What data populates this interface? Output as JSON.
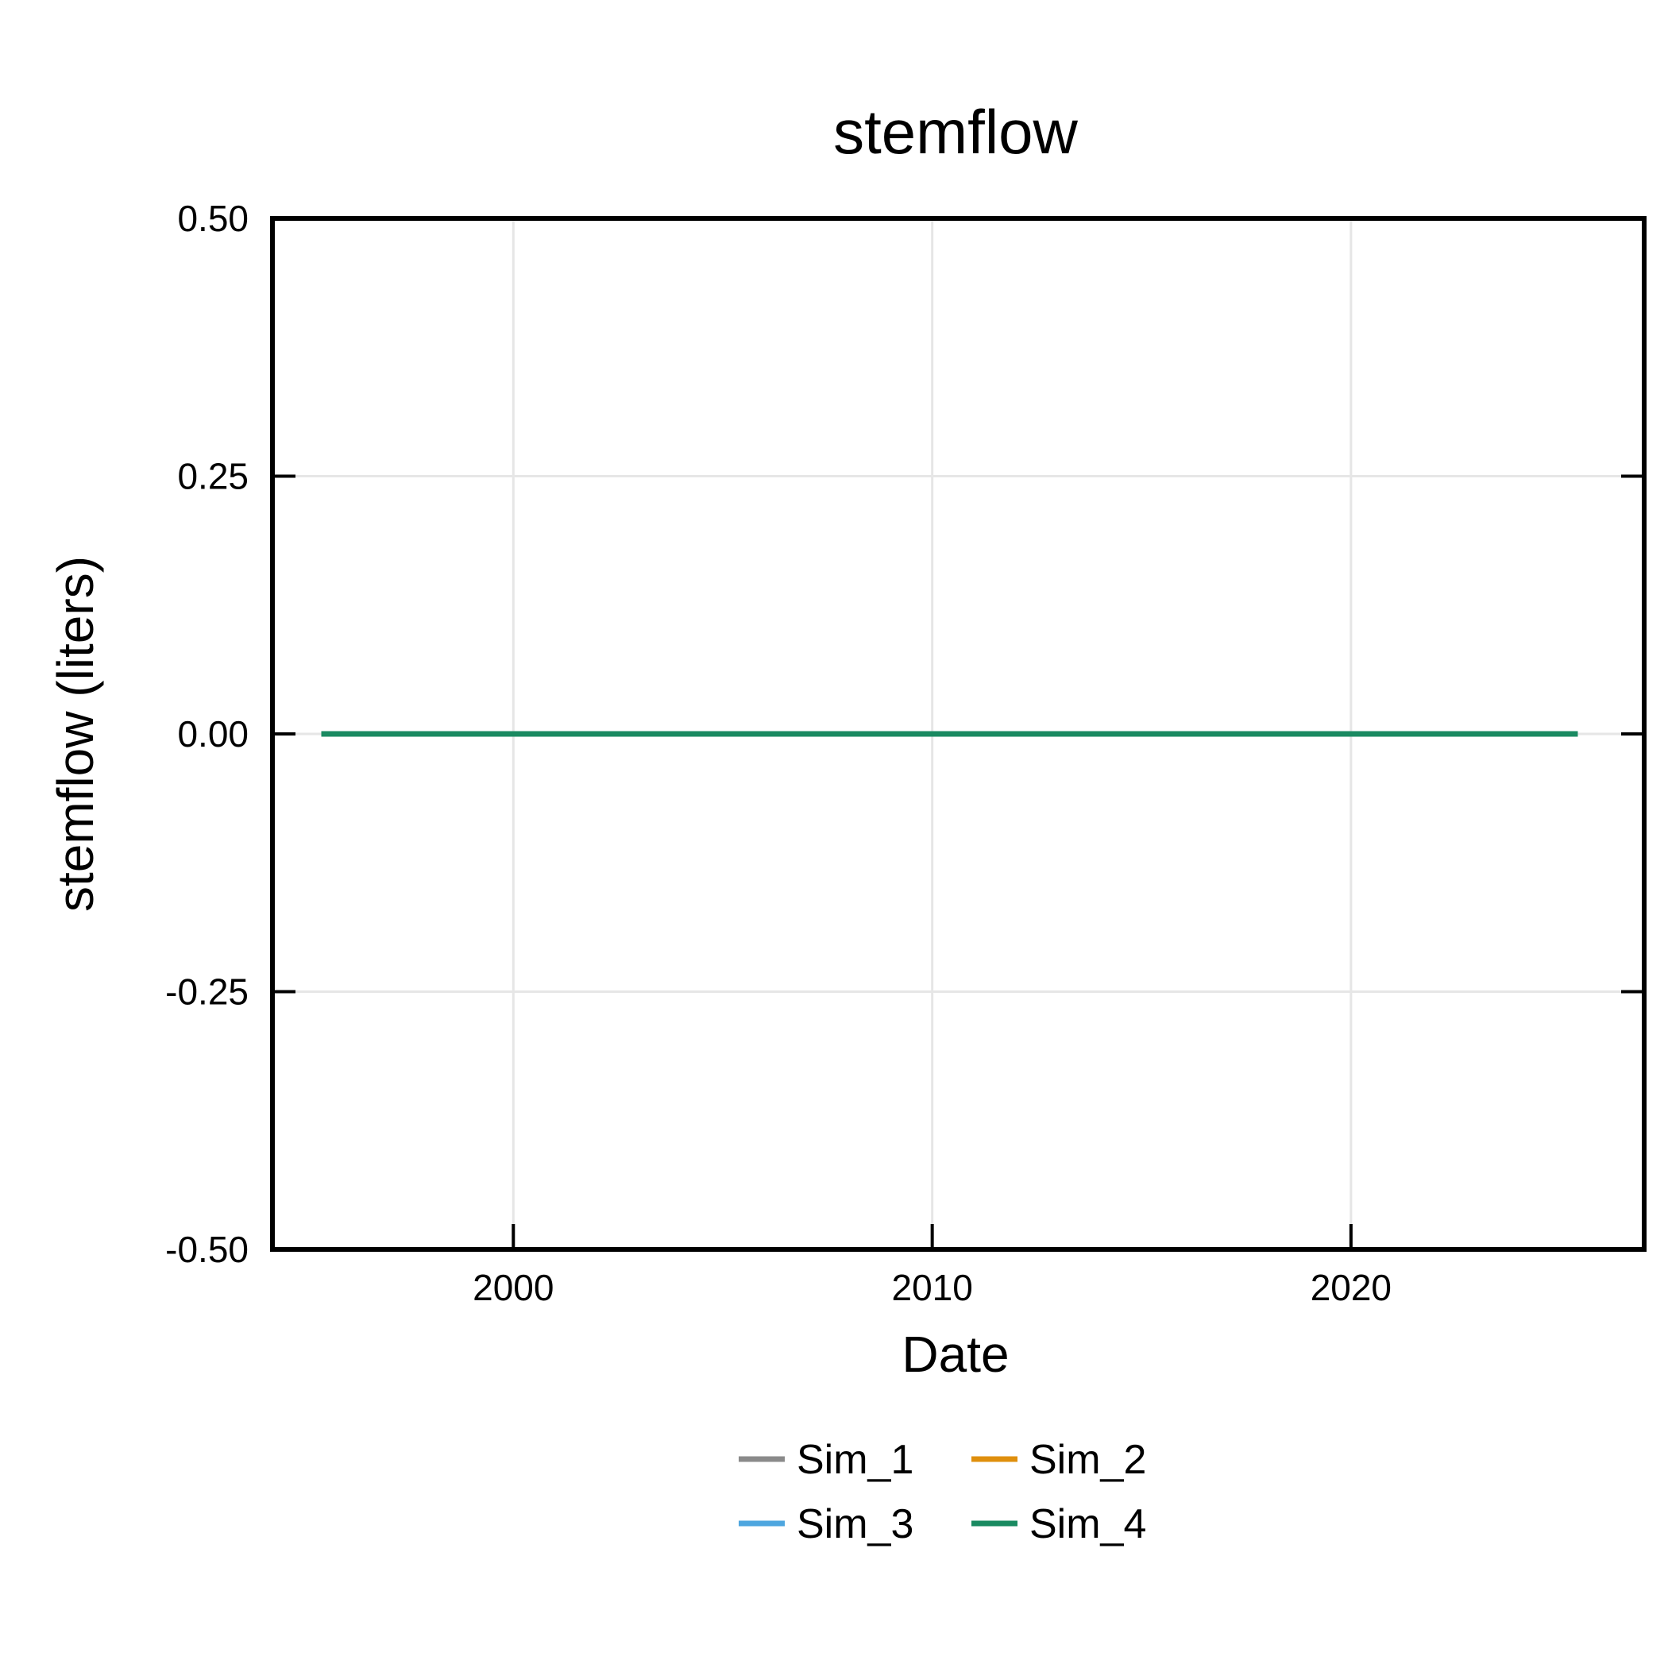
{
  "chart_data": {
    "type": "line",
    "title": "stemflow",
    "xlabel": "Date",
    "ylabel": "stemflow (liters)",
    "xlim": [
      "1994-04-01",
      "2027-01-01"
    ],
    "ylim": [
      -0.5,
      0.5
    ],
    "x_ticks": [
      "2000",
      "2010",
      "2020"
    ],
    "y_ticks": [
      "0.50",
      "0.25",
      "0.00",
      "-0.25",
      "-0.50"
    ],
    "grid": true,
    "legend_position": "bottom",
    "series": [
      {
        "name": "Sim_1",
        "color": "#8a8a8a",
        "x": [
          "1995-06-01",
          "2025-06-01"
        ],
        "y": [
          0,
          0
        ]
      },
      {
        "name": "Sim_2",
        "color": "#df8f0d",
        "x": [
          "1995-06-01",
          "2025-06-01"
        ],
        "y": [
          0,
          0
        ]
      },
      {
        "name": "Sim_3",
        "color": "#4ea6df",
        "x": [
          "1995-06-01",
          "2025-06-01"
        ],
        "y": [
          0,
          0
        ]
      },
      {
        "name": "Sim_4",
        "color": "#1a8a61",
        "x": [
          "1995-06-01",
          "2025-06-01"
        ],
        "y": [
          0,
          0
        ]
      }
    ]
  }
}
